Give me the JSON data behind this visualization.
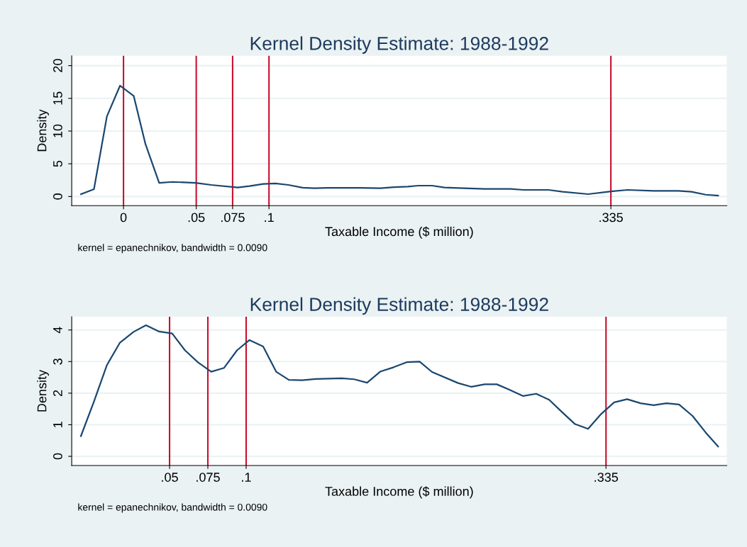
{
  "chart_data": [
    {
      "type": "line",
      "title": "Kernel Density Estimate: 1988-1992",
      "xlabel": "Taxable Income ($ million)",
      "ylabel": "Density",
      "annotations": [
        "kernel = epanechnikov, bandwidth = 0.0090"
      ],
      "series": [
        {
          "color": "#1a476f",
          "x": [
            -0.0292,
            -0.0203,
            -0.0114,
            -0.0024,
            0.007,
            0.0151,
            0.0245,
            0.0335,
            0.0497,
            0.0603,
            0.0785,
            0.0866,
            0.096,
            0.1044,
            0.1134,
            0.1231,
            0.1312,
            0.1402,
            0.1589,
            0.1767,
            0.186,
            0.1954,
            0.2027,
            0.2121,
            0.2206,
            0.2304,
            0.2482,
            0.2661,
            0.275,
            0.2921,
            0.3018,
            0.3194,
            0.3351,
            0.3465,
            0.3644,
            0.3814,
            0.3904,
            0.4001,
            0.4087
          ],
          "values": [
            0.36,
            1.12,
            12.26,
            16.93,
            15.38,
            8.0,
            2.09,
            2.23,
            2.09,
            1.77,
            1.37,
            1.59,
            1.91,
            1.99,
            1.77,
            1.34,
            1.26,
            1.33,
            1.33,
            1.26,
            1.44,
            1.52,
            1.66,
            1.66,
            1.37,
            1.3,
            1.15,
            1.15,
            1.01,
            1.01,
            0.72,
            0.36,
            0.79,
            1.01,
            0.87,
            0.87,
            0.72,
            0.28,
            0.14
          ]
        }
      ],
      "xlim": [
        -0.0356,
        0.4147
      ],
      "ylim": [
        -1.4,
        21.5
      ],
      "xticks": [
        0,
        {
          "value": 0.05,
          "label": ".05"
        },
        {
          "value": 0.075,
          "label": ".075"
        },
        {
          "value": 0.1,
          "label": ".1"
        },
        {
          "value": 0.335,
          "label": ".335"
        }
      ],
      "yticks": [
        0,
        5,
        10,
        15,
        20
      ],
      "ref_lines": [
        {
          "axis": "x",
          "value": 0,
          "color": "#c8102e"
        },
        {
          "axis": "x",
          "value": 0.05,
          "color": "#c8102e"
        },
        {
          "axis": "x",
          "value": 0.075,
          "color": "#c8102e"
        },
        {
          "axis": "x",
          "value": 0.1,
          "color": "#c8102e"
        },
        {
          "axis": "x",
          "value": 0.335,
          "color": "#c8102e"
        }
      ],
      "grid": "y",
      "line_style": "solid"
    },
    {
      "type": "line",
      "title": "Kernel Density Estimate: 1988-1992",
      "xlabel": "Taxable Income ($ million)",
      "ylabel": "Density",
      "annotations": [
        "kernel = epanechnikov, bandwidth = 0.0090"
      ],
      "series": [
        {
          "color": "#1a476f",
          "x": [
            -0.0079,
            0.0006,
            0.0091,
            0.0176,
            0.0265,
            0.0346,
            0.0432,
            0.0517,
            0.06,
            0.0687,
            0.0772,
            0.0856,
            0.0941,
            0.1022,
            0.1111,
            0.1196,
            0.1279,
            0.1366,
            0.1454,
            0.1624,
            0.1705,
            0.179,
            0.1875,
            0.1963,
            0.2048,
            0.2133,
            0.2214,
            0.2384,
            0.2472,
            0.2557,
            0.2637,
            0.2719,
            0.2809,
            0.2894,
            0.2979,
            0.3063,
            0.3148,
            0.3233,
            0.3318,
            0.3403,
            0.3488,
            0.3576,
            0.3661,
            0.3745,
            0.3827,
            0.3915,
            0.4,
            0.4082
          ],
          "values": [
            0.64,
            1.73,
            2.89,
            3.6,
            3.94,
            4.15,
            3.95,
            3.89,
            3.36,
            2.97,
            2.68,
            2.8,
            3.36,
            3.68,
            3.48,
            2.68,
            2.42,
            2.41,
            2.45,
            2.47,
            2.44,
            2.33,
            2.68,
            2.82,
            2.98,
            3.0,
            2.67,
            2.32,
            2.2,
            2.28,
            2.28,
            2.11,
            1.91,
            1.98,
            1.79,
            1.4,
            1.02,
            0.87,
            1.34,
            1.71,
            1.81,
            1.68,
            1.62,
            1.68,
            1.64,
            1.28,
            0.76,
            0.31
          ]
        }
      ],
      "xlim": [
        -0.0139,
        0.4139
      ],
      "ylim": [
        -0.29,
        4.42
      ],
      "xticks": [
        {
          "value": 0.05,
          "label": ".05"
        },
        {
          "value": 0.075,
          "label": ".075"
        },
        {
          "value": 0.1,
          "label": ".1"
        },
        {
          "value": 0.335,
          "label": ".335"
        }
      ],
      "yticks": [
        0,
        1,
        2,
        3,
        4
      ],
      "ref_lines": [
        {
          "axis": "x",
          "value": 0.05,
          "color": "#c8102e"
        },
        {
          "axis": "x",
          "value": 0.075,
          "color": "#c8102e"
        },
        {
          "axis": "x",
          "value": 0.1,
          "color": "#c8102e"
        },
        {
          "axis": "x",
          "value": 0.335,
          "color": "#c8102e"
        }
      ],
      "grid": "y",
      "line_style": "solid"
    }
  ]
}
